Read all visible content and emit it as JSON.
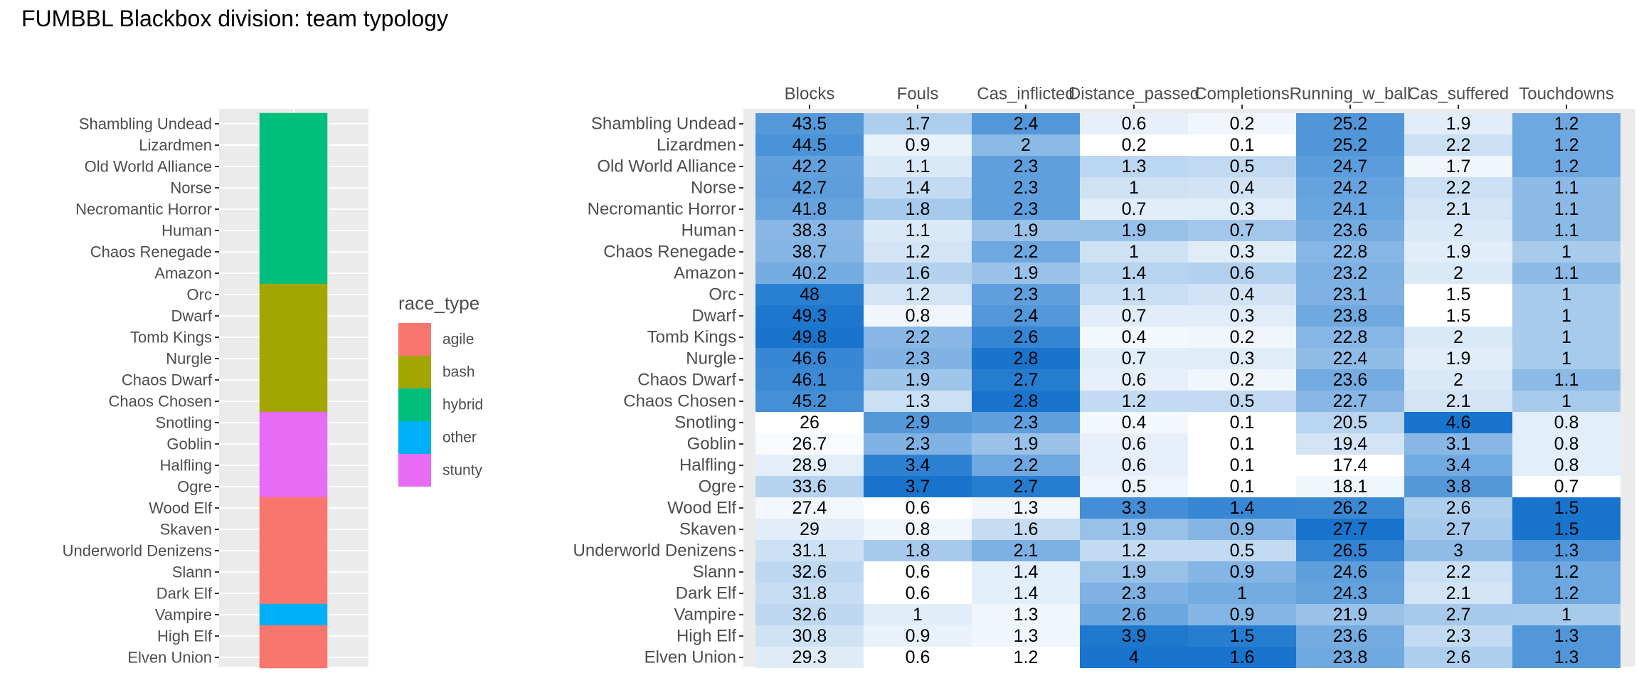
{
  "title": "FUMBBL Blackbox division: team typology",
  "chart_data": [
    {
      "type": "bar",
      "orientation": "stacked-column",
      "teams": [
        "Shambling Undead",
        "Lizardmen",
        "Old World Alliance",
        "Norse",
        "Necromantic Horror",
        "Human",
        "Chaos Renegade",
        "Amazon",
        "Orc",
        "Dwarf",
        "Tomb Kings",
        "Nurgle",
        "Chaos Dwarf",
        "Chaos Chosen",
        "Snotling",
        "Goblin",
        "Halfling",
        "Ogre",
        "Wood Elf",
        "Skaven",
        "Underworld Denizens",
        "Slann",
        "Dark Elf",
        "Vampire",
        "High Elf",
        "Elven Union"
      ],
      "race_type": [
        "hybrid",
        "hybrid",
        "hybrid",
        "hybrid",
        "hybrid",
        "hybrid",
        "hybrid",
        "hybrid",
        "bash",
        "bash",
        "bash",
        "bash",
        "bash",
        "bash",
        "stunty",
        "stunty",
        "stunty",
        "stunty",
        "agile",
        "agile",
        "agile",
        "agile",
        "agile",
        "other",
        "agile",
        "agile"
      ],
      "legend": {
        "title": "race_type",
        "position": "right",
        "entries": [
          "agile",
          "bash",
          "hybrid",
          "other",
          "stunty"
        ],
        "colors": {
          "agile": "#F8766D",
          "bash": "#A3A500",
          "hybrid": "#00BF7D",
          "other": "#00B0F6",
          "stunty": "#E76BF3"
        }
      },
      "grid": true
    },
    {
      "type": "heatmap",
      "columns": [
        "Blocks",
        "Fouls",
        "Cas_inflicted",
        "Distance_passed",
        "Completions",
        "Running_w_ball",
        "Cas_suffered",
        "Touchdowns"
      ],
      "rows": [
        "Shambling Undead",
        "Lizardmen",
        "Old World Alliance",
        "Norse",
        "Necromantic Horror",
        "Human",
        "Chaos Renegade",
        "Amazon",
        "Orc",
        "Dwarf",
        "Tomb Kings",
        "Nurgle",
        "Chaos Dwarf",
        "Chaos Chosen",
        "Snotling",
        "Goblin",
        "Halfling",
        "Ogre",
        "Wood Elf",
        "Skaven",
        "Underworld Denizens",
        "Slann",
        "Dark Elf",
        "Vampire",
        "High Elf",
        "Elven Union"
      ],
      "values": [
        [
          "43.5",
          "1.7",
          "2.4",
          "0.6",
          "0.2",
          "25.2",
          "1.9",
          "1.2"
        ],
        [
          "44.5",
          "0.9",
          "2",
          "0.2",
          "0.1",
          "25.2",
          "2.2",
          "1.2"
        ],
        [
          "42.2",
          "1.1",
          "2.3",
          "1.3",
          "0.5",
          "24.7",
          "1.7",
          "1.2"
        ],
        [
          "42.7",
          "1.4",
          "2.3",
          "1",
          "0.4",
          "24.2",
          "2.2",
          "1.1"
        ],
        [
          "41.8",
          "1.8",
          "2.3",
          "0.7",
          "0.3",
          "24.1",
          "2.1",
          "1.1"
        ],
        [
          "38.3",
          "1.1",
          "1.9",
          "1.9",
          "0.7",
          "23.6",
          "2",
          "1.1"
        ],
        [
          "38.7",
          "1.2",
          "2.2",
          "1",
          "0.3",
          "22.8",
          "1.9",
          "1"
        ],
        [
          "40.2",
          "1.6",
          "1.9",
          "1.4",
          "0.6",
          "23.2",
          "2",
          "1.1"
        ],
        [
          "48",
          "1.2",
          "2.3",
          "1.1",
          "0.4",
          "23.1",
          "1.5",
          "1"
        ],
        [
          "49.3",
          "0.8",
          "2.4",
          "0.7",
          "0.3",
          "23.8",
          "1.5",
          "1"
        ],
        [
          "49.8",
          "2.2",
          "2.6",
          "0.4",
          "0.2",
          "22.8",
          "2",
          "1"
        ],
        [
          "46.6",
          "2.3",
          "2.8",
          "0.7",
          "0.3",
          "22.4",
          "1.9",
          "1"
        ],
        [
          "46.1",
          "1.9",
          "2.7",
          "0.6",
          "0.2",
          "23.6",
          "2",
          "1.1"
        ],
        [
          "45.2",
          "1.3",
          "2.8",
          "1.2",
          "0.5",
          "22.7",
          "2.1",
          "1"
        ],
        [
          "26",
          "2.9",
          "2.3",
          "0.4",
          "0.1",
          "20.5",
          "4.6",
          "0.8"
        ],
        [
          "26.7",
          "2.3",
          "1.9",
          "0.6",
          "0.1",
          "19.4",
          "3.1",
          "0.8"
        ],
        [
          "28.9",
          "3.4",
          "2.2",
          "0.6",
          "0.1",
          "17.4",
          "3.4",
          "0.8"
        ],
        [
          "33.6",
          "3.7",
          "2.7",
          "0.5",
          "0.1",
          "18.1",
          "3.8",
          "0.7"
        ],
        [
          "27.4",
          "0.6",
          "1.3",
          "3.3",
          "1.4",
          "26.2",
          "2.6",
          "1.5"
        ],
        [
          "29",
          "0.8",
          "1.6",
          "1.9",
          "0.9",
          "27.7",
          "2.7",
          "1.5"
        ],
        [
          "31.1",
          "1.8",
          "2.1",
          "1.2",
          "0.5",
          "26.5",
          "3",
          "1.3"
        ],
        [
          "32.6",
          "0.6",
          "1.4",
          "1.9",
          "0.9",
          "24.6",
          "2.2",
          "1.2"
        ],
        [
          "31.8",
          "0.6",
          "1.4",
          "2.3",
          "1",
          "24.3",
          "2.1",
          "1.2"
        ],
        [
          "32.6",
          "1",
          "1.3",
          "2.6",
          "0.9",
          "21.9",
          "2.7",
          "1"
        ],
        [
          "30.8",
          "0.9",
          "1.3",
          "3.9",
          "1.5",
          "23.6",
          "2.3",
          "1.3"
        ],
        [
          "29.3",
          "0.6",
          "1.2",
          "4",
          "1.6",
          "23.8",
          "2.6",
          "1.3"
        ]
      ],
      "color_scale": {
        "low": "#FFFFFF",
        "high": "#1874CD",
        "scaling": "per column"
      }
    }
  ]
}
